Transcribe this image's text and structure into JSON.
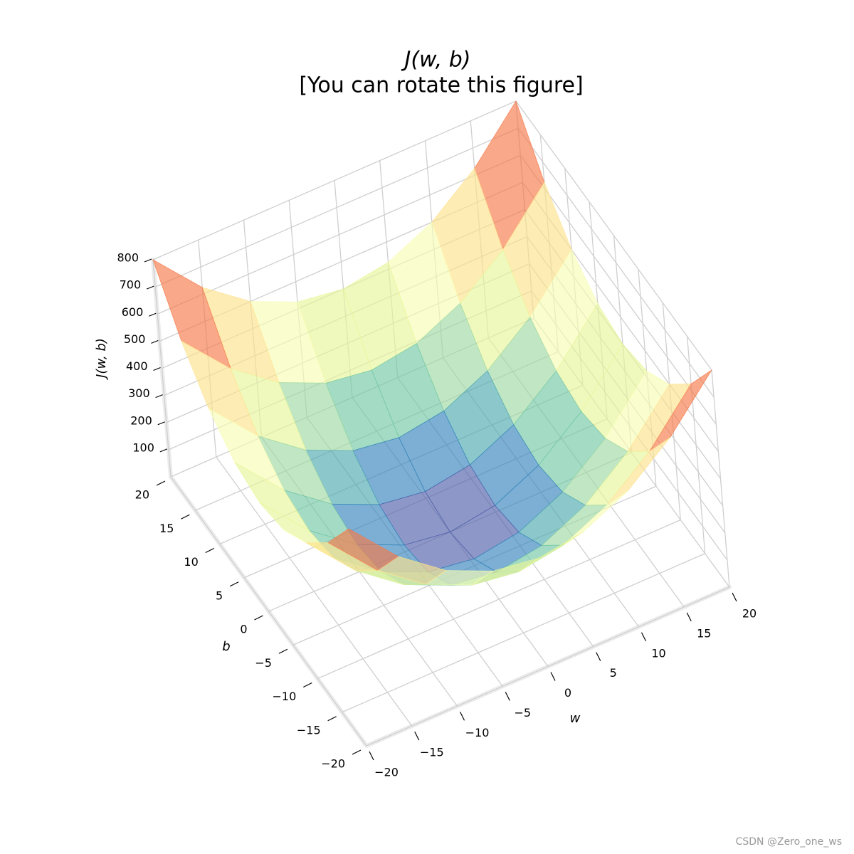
{
  "chart_data": {
    "type": "surface",
    "title": "J(w, b)",
    "subtitle": "[You can rotate this figure]",
    "x_label": "w",
    "y_label": "b",
    "z_label": "J(w, b)",
    "x": [
      -20,
      -15,
      -10,
      -5,
      0,
      5,
      10,
      15,
      20
    ],
    "y": [
      -20,
      -15,
      -10,
      -5,
      0,
      5,
      10,
      15,
      20
    ],
    "z": [
      [
        800,
        625,
        500,
        425,
        400,
        425,
        500,
        625,
        800
      ],
      [
        625,
        450,
        325,
        250,
        225,
        250,
        325,
        450,
        625
      ],
      [
        500,
        325,
        200,
        125,
        100,
        125,
        200,
        325,
        500
      ],
      [
        425,
        250,
        125,
        50,
        25,
        50,
        125,
        250,
        425
      ],
      [
        400,
        225,
        100,
        25,
        0,
        25,
        100,
        225,
        400
      ],
      [
        425,
        250,
        125,
        50,
        25,
        50,
        125,
        250,
        425
      ],
      [
        500,
        325,
        200,
        125,
        100,
        125,
        200,
        325,
        500
      ],
      [
        625,
        450,
        325,
        250,
        225,
        250,
        325,
        450,
        625
      ],
      [
        800,
        625,
        500,
        425,
        400,
        425,
        500,
        625,
        800
      ]
    ],
    "xlim": [
      -20,
      20
    ],
    "ylim": [
      -20,
      20
    ],
    "zlim": [
      0,
      800
    ],
    "xticks": [
      {
        "value": -20,
        "label": "−20"
      },
      {
        "value": -15,
        "label": "−15"
      },
      {
        "value": -10,
        "label": "−10"
      },
      {
        "value": -5,
        "label": "−5"
      },
      0,
      5,
      10,
      15,
      20
    ],
    "yticks": [
      {
        "value": -20,
        "label": "−20"
      },
      {
        "value": -15,
        "label": "−15"
      },
      {
        "value": -10,
        "label": "−10"
      },
      {
        "value": -5,
        "label": "−5"
      },
      0,
      5,
      10,
      15,
      20
    ],
    "zticks": [
      100,
      200,
      300,
      400,
      500,
      600,
      700,
      800
    ],
    "colormap": [
      "#5e4fa2",
      "#3288bd",
      "#66c2a5",
      "#abdda4",
      "#e6f598",
      "#ffffbf",
      "#fee08b",
      "#fdae61",
      "#f46d43",
      "#d53e4f",
      "#9e0142"
    ],
    "opacity": 0.65,
    "grid": true
  },
  "watermark": "CSDN @Zero_one_ws"
}
